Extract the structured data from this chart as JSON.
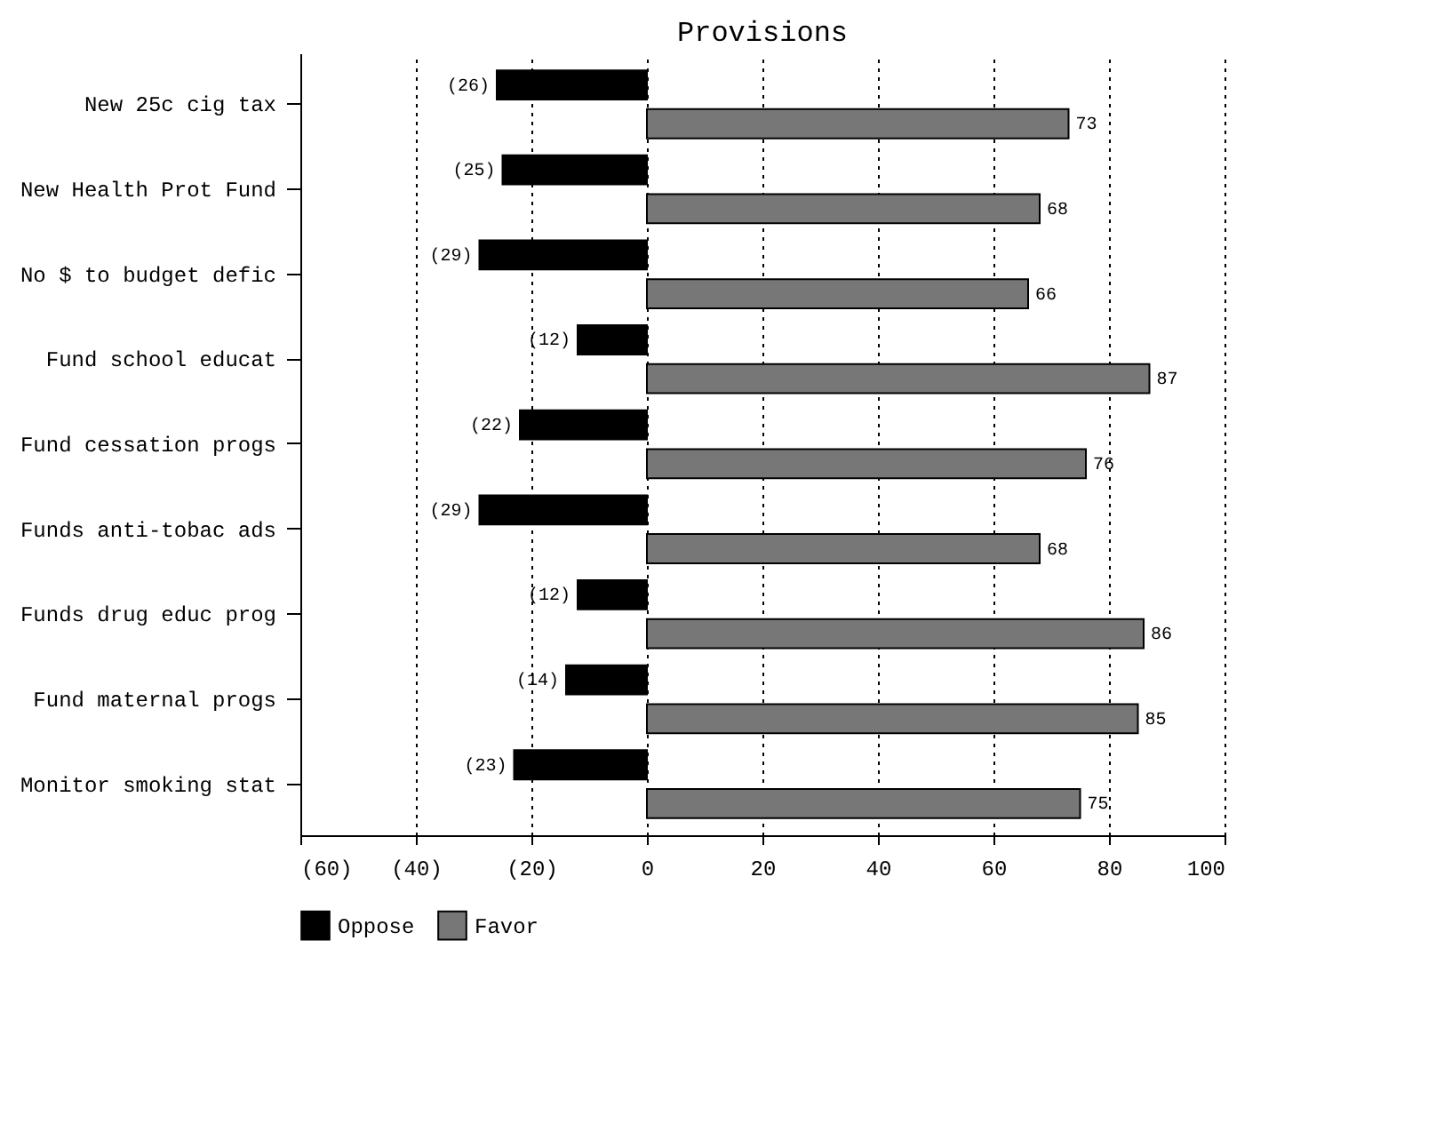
{
  "chart_data": {
    "type": "bar",
    "orientation": "horizontal",
    "title": "Provisions",
    "categories": [
      "New 25c cig tax",
      "New Health Prot Fund",
      "No $ to budget defic",
      "Fund school educat",
      "Fund cessation progs",
      "Funds anti-tobac ads",
      "Funds drug educ prog",
      "Fund maternal progs",
      "Monitor smoking stat"
    ],
    "series": [
      {
        "name": "Oppose",
        "color": "#000000",
        "values": [
          -26,
          -25,
          -29,
          -12,
          -22,
          -29,
          -12,
          -14,
          -23
        ],
        "value_labels": [
          "(26)",
          "(25)",
          "(29)",
          "(12)",
          "(22)",
          "(29)",
          "(12)",
          "(14)",
          "(23)"
        ]
      },
      {
        "name": "Favor",
        "color": "#777777",
        "values": [
          73,
          68,
          66,
          87,
          76,
          68,
          86,
          85,
          75
        ],
        "value_labels": [
          "73",
          "68",
          "66",
          "87",
          "76",
          "68",
          "86",
          "85",
          "75"
        ]
      }
    ],
    "xlim": [
      -60,
      100
    ],
    "xticks": [
      {
        "value": -60,
        "label": "(60)"
      },
      {
        "value": -40,
        "label": "(40)"
      },
      {
        "value": -20,
        "label": "(20)"
      },
      0,
      20,
      40,
      60,
      80,
      100
    ],
    "grid": "x",
    "legend": "bottom"
  }
}
